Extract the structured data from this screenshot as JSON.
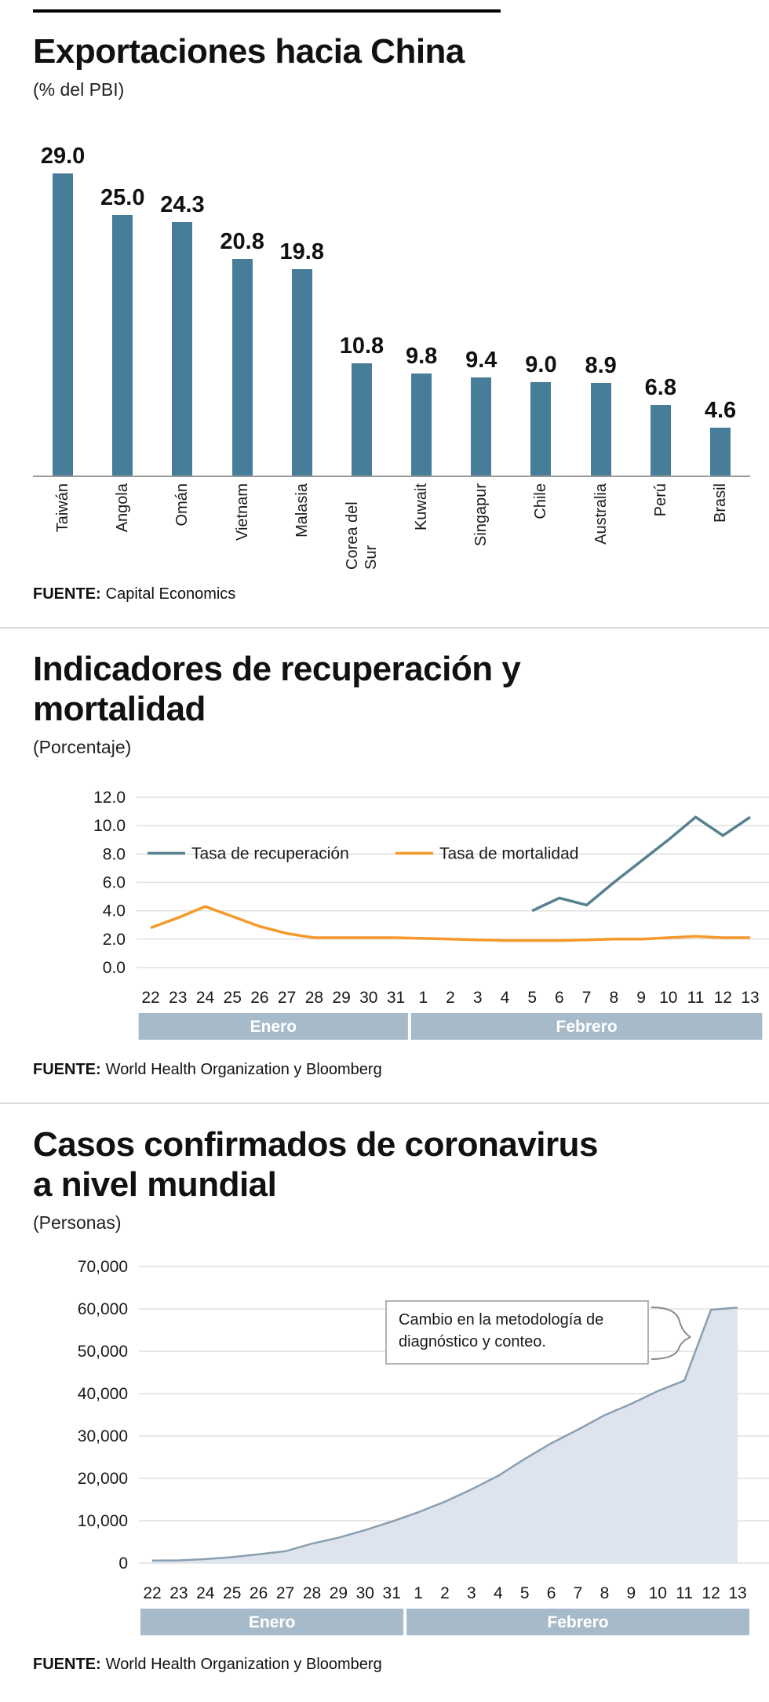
{
  "page": {
    "accent_teal": "#477d98",
    "accent_orange": "#f5992b",
    "band_color": "#a7bac9",
    "grid_color": "#e0e0e0"
  },
  "chart_data": [
    {
      "id": "exportaciones-hacia-china",
      "type": "bar",
      "title": "Exportaciones hacia China",
      "subtitle": "(% del PBI)",
      "source_label": "FUENTE:",
      "source": "Capital Economics",
      "categories": [
        "Taiwán",
        "Angola",
        "Omán",
        "Vietnam",
        "Malasia",
        "Corea del Sur",
        "Kuwait",
        "Singapur",
        "Chile",
        "Australia",
        "Perú",
        "Brasil"
      ],
      "values": [
        29.0,
        25.0,
        24.3,
        20.8,
        19.8,
        10.8,
        9.8,
        9.4,
        9.0,
        8.9,
        6.8,
        4.6
      ],
      "value_labels": [
        "29.0",
        "25.0",
        "24.3",
        "20.8",
        "19.8",
        "10.8",
        "9.8",
        "9.4",
        "9.0",
        "8.9",
        "6.8",
        "4.6"
      ],
      "ylim": [
        0,
        29
      ],
      "bar_color": "#477d98"
    },
    {
      "id": "indicadores-recuperacion-mortalidad",
      "type": "line",
      "title": "Indicadores de recuperación y mortalidad",
      "title_lines": [
        "Indicadores de recuperación y",
        "mortalidad"
      ],
      "subtitle": "(Porcentaje)",
      "source_label": "FUENTE:",
      "source": "World Health Organization y Bloomberg",
      "x": [
        "22",
        "23",
        "24",
        "25",
        "26",
        "27",
        "28",
        "29",
        "30",
        "31",
        "1",
        "2",
        "3",
        "4",
        "5",
        "6",
        "7",
        "8",
        "9",
        "10",
        "11",
        "12",
        "13"
      ],
      "y_ticks": [
        "12.0",
        "10.0",
        "8.0",
        "6.0",
        "4.0",
        "2.0",
        "0.0"
      ],
      "ylim": [
        0,
        12
      ],
      "grid": true,
      "legend_position": "inside-top-left",
      "months": [
        {
          "label": "Enero",
          "start": 0,
          "end": 9
        },
        {
          "label": "Febrero",
          "start": 10,
          "end": 22
        }
      ],
      "series": [
        {
          "name": "Tasa de recuperación",
          "color": "#58808f",
          "values": [
            null,
            null,
            null,
            null,
            null,
            null,
            null,
            null,
            null,
            null,
            null,
            null,
            null,
            null,
            4.0,
            4.9,
            4.4,
            6.0,
            7.5,
            9.0,
            10.6,
            9.3,
            10.6
          ]
        },
        {
          "name": "Tasa de mortalidad",
          "color": "#f5992b",
          "values": [
            2.8,
            3.5,
            4.3,
            3.6,
            2.9,
            2.4,
            2.1,
            2.1,
            2.1,
            2.1,
            2.05,
            2.0,
            1.95,
            1.9,
            1.9,
            1.9,
            1.95,
            2.0,
            2.0,
            2.1,
            2.2,
            2.1,
            2.1
          ]
        }
      ]
    },
    {
      "id": "casos-confirmados-coronavirus",
      "type": "area",
      "title": "Casos confirmados de coronavirus a nivel mundial",
      "title_lines": [
        "Casos confirmados de coronavirus",
        "a nivel mundial"
      ],
      "subtitle": "(Personas)",
      "source_label": "FUENTE:",
      "source": "World Health Organization y Bloomberg",
      "x": [
        "22",
        "23",
        "24",
        "25",
        "26",
        "27",
        "28",
        "29",
        "30",
        "31",
        "1",
        "2",
        "3",
        "4",
        "5",
        "6",
        "7",
        "8",
        "9",
        "10",
        "11",
        "12",
        "13"
      ],
      "y_ticks": [
        "70,000",
        "60,000",
        "50,000",
        "40,000",
        "30,000",
        "20,000",
        "10,000",
        "0"
      ],
      "ylim": [
        0,
        70000
      ],
      "grid": true,
      "values": [
        600,
        650,
        950,
        1400,
        2100,
        2800,
        4600,
        6000,
        7800,
        9800,
        12000,
        14500,
        17400,
        20600,
        24600,
        28300,
        31500,
        34900,
        37600,
        40600,
        43100,
        59800,
        60300
      ],
      "months": [
        {
          "label": "Enero",
          "start": 0,
          "end": 9
        },
        {
          "label": "Febrero",
          "start": 10,
          "end": 22
        }
      ],
      "annotation": {
        "text": "Cambio en la metodología de diagnóstico y conteo.",
        "text_lines": [
          "Cambio en la metodología de",
          "diagnóstico y conteo."
        ]
      },
      "area_fill": "#dde4ed",
      "area_line": "#8a9fb0"
    }
  ]
}
